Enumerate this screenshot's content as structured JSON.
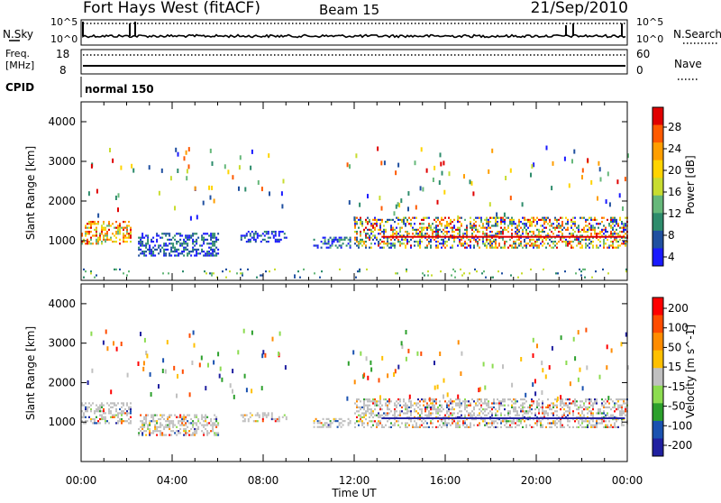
{
  "header": {
    "title": "Fort Hays West (fitACF)",
    "beam": "Beam 15",
    "date": "21/Sep/2010"
  },
  "top_panel": {
    "left_label": "N.Sky",
    "right_label": "N.Search",
    "left_ticks": [
      "10^5",
      "10^0"
    ],
    "right_ticks": [
      "10^5",
      "10^0"
    ]
  },
  "mid_panel": {
    "left_label_1": "Freq.",
    "left_label_2": "[MHz]",
    "right_label": "Nave",
    "left_ticks": [
      "18",
      "8"
    ],
    "right_ticks": [
      "60",
      "0"
    ]
  },
  "cpid": {
    "label": "CPID",
    "value": "normal 150"
  },
  "x_axis": {
    "label": "Time UT",
    "ticks": [
      "00:00",
      "04:00",
      "08:00",
      "12:00",
      "16:00",
      "20:00",
      "00:00"
    ]
  },
  "power_panel": {
    "ylabel": "Slant Range [km]",
    "colorbar_label": "Power [dB]",
    "colorbar_ticks": [
      "28",
      "24",
      "20",
      "16",
      "12",
      "8",
      "4"
    ],
    "y_ticks": [
      "4000",
      "3000",
      "2000",
      "1000"
    ]
  },
  "velocity_panel": {
    "ylabel": "Slant Range [km]",
    "colorbar_label": "Velocity [m s^-1]",
    "colorbar_ticks": [
      "200",
      "100",
      "50",
      "15",
      "-15",
      "-50",
      "-100",
      "-200"
    ],
    "y_ticks": [
      "4000",
      "3000",
      "2000",
      "1000"
    ]
  },
  "colors": {
    "power_scale": [
      "#e00000",
      "#ff5a00",
      "#ff9e00",
      "#ffd400",
      "#c8dc30",
      "#66b87a",
      "#2e8c6c",
      "#2050a0",
      "#1a1aff"
    ],
    "velocity_scale": [
      "#ff0000",
      "#ff4c00",
      "#ff8c00",
      "#ffc000",
      "#c0c0c0",
      "#8cdc50",
      "#2ca02c",
      "#1a52b0",
      "#2020a0"
    ]
  },
  "chart_data": [
    {
      "type": "heatmap",
      "title": "Power",
      "xlabel": "Time UT",
      "ylabel": "Slant Range [km]",
      "xlim": [
        "00:00",
        "24:00"
      ],
      "ylim": [
        0,
        4500
      ],
      "colorbar": {
        "label": "Power [dB]",
        "range": [
          0,
          30
        ],
        "ticks": [
          4,
          8,
          12,
          16,
          20,
          24,
          28
        ]
      },
      "scatter_regions": [
        {
          "t_start": 0.0,
          "t_end": 2.2,
          "range_km": [
            950,
            1500
          ],
          "dominant": "high power (orange/red)"
        },
        {
          "t_start": 2.5,
          "t_end": 6.0,
          "range_km": [
            650,
            1200
          ],
          "dominant": "low power (blue/green)"
        },
        {
          "t_start": 7.0,
          "t_end": 9.0,
          "range_km": [
            1000,
            1250
          ],
          "dominant": "low power (blue)"
        },
        {
          "t_start": 10.2,
          "t_end": 11.8,
          "range_km": [
            850,
            1100
          ],
          "dominant": "low power (blue)"
        },
        {
          "t_start": 12.0,
          "t_end": 24.0,
          "range_km": [
            850,
            1600
          ],
          "dominant": "mixed power, red band ~1100 km"
        },
        {
          "t_start": 0.0,
          "t_end": 24.0,
          "range_km": [
            100,
            300
          ],
          "dominant": "sparse ground scatter"
        }
      ]
    },
    {
      "type": "heatmap",
      "title": "Velocity",
      "xlabel": "Time UT",
      "ylabel": "Slant Range [km]",
      "xlim": [
        "00:00",
        "24:00"
      ],
      "ylim": [
        0,
        4500
      ],
      "colorbar": {
        "label": "Velocity [m s^-1]",
        "range": [
          -250,
          250
        ],
        "ticks": [
          -200,
          -100,
          -50,
          -15,
          15,
          50,
          100,
          200
        ]
      },
      "scatter_regions": [
        {
          "t_start": 0.0,
          "t_end": 2.2,
          "range_km": [
            950,
            1500
          ],
          "dominant": "near-zero velocity (grey)"
        },
        {
          "t_start": 2.5,
          "t_end": 6.0,
          "range_km": [
            650,
            1200
          ],
          "dominant": "mixed, green/orange"
        },
        {
          "t_start": 7.0,
          "t_end": 9.0,
          "range_km": [
            1000,
            1250
          ],
          "dominant": "near-zero (grey)"
        },
        {
          "t_start": 10.2,
          "t_end": 11.8,
          "range_km": [
            850,
            1100
          ],
          "dominant": "near-zero (grey)"
        },
        {
          "t_start": 12.0,
          "t_end": 24.0,
          "range_km": [
            850,
            1600
          ],
          "dominant": "near-zero (grey) with blue/red band ~1100 km"
        }
      ]
    }
  ]
}
